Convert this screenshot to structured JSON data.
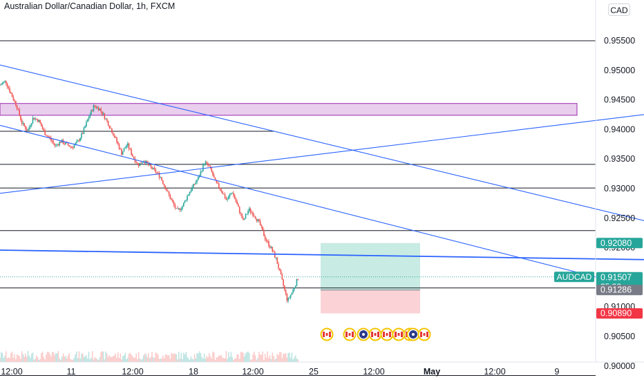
{
  "header": {
    "title": "Australian Dollar/Canadian Dollar, 1h, FXCM",
    "currency_button": "CAD"
  },
  "colors": {
    "up": "#26a69a",
    "down": "#ef5350",
    "trendline": "#2962ff",
    "zone_border": "#9c27b0",
    "zone_fill": "#e1bee7",
    "profit_zone": "#c8ebe3",
    "stop_zone": "#fbd3d6",
    "horizontal_line": "#131722",
    "target_tag": "#26a69a",
    "stop_tag": "#f23645",
    "entry_tag": "#787b86"
  },
  "chart_data": {
    "type": "line",
    "symbol": "AUDCAD",
    "timeframe": "1h",
    "y_ticks": [
      "0.95500",
      "0.95000",
      "0.94500",
      "0.94000",
      "0.93500",
      "0.93000",
      "0.92500",
      "0.92000",
      "0.91500",
      "0.91000",
      "0.90500",
      "0.90000"
    ],
    "y_tick_values": [
      0.955,
      0.95,
      0.945,
      0.94,
      0.935,
      0.93,
      0.925,
      0.92,
      0.915,
      0.91,
      0.905,
      0.9
    ],
    "x_ticks": [
      "12:00",
      "11",
      "12:00",
      "18",
      "12:00",
      "25",
      "12:00",
      "May",
      "12:00",
      "9"
    ],
    "x_tick_bold": [
      false,
      false,
      false,
      false,
      false,
      false,
      false,
      true,
      false,
      false
    ],
    "price_path": [
      {
        "t": 0,
        "p": 0.9475
      },
      {
        "t": 1,
        "p": 0.9482
      },
      {
        "t": 2,
        "p": 0.946
      },
      {
        "t": 3,
        "p": 0.944
      },
      {
        "t": 4,
        "p": 0.941
      },
      {
        "t": 5,
        "p": 0.9398
      },
      {
        "t": 6,
        "p": 0.942
      },
      {
        "t": 7,
        "p": 0.9415
      },
      {
        "t": 8,
        "p": 0.9395
      },
      {
        "t": 9,
        "p": 0.9385
      },
      {
        "t": 10,
        "p": 0.9372
      },
      {
        "t": 11,
        "p": 0.938
      },
      {
        "t": 12,
        "p": 0.9375
      },
      {
        "t": 13,
        "p": 0.937
      },
      {
        "t": 14,
        "p": 0.9378
      },
      {
        "t": 15,
        "p": 0.9395
      },
      {
        "t": 16,
        "p": 0.942
      },
      {
        "t": 17,
        "p": 0.944
      },
      {
        "t": 18,
        "p": 0.9435
      },
      {
        "t": 19,
        "p": 0.942
      },
      {
        "t": 20,
        "p": 0.9402
      },
      {
        "t": 21,
        "p": 0.9382
      },
      {
        "t": 22,
        "p": 0.936
      },
      {
        "t": 23,
        "p": 0.9375
      },
      {
        "t": 24,
        "p": 0.9355
      },
      {
        "t": 25,
        "p": 0.934
      },
      {
        "t": 26,
        "p": 0.9348
      },
      {
        "t": 27,
        "p": 0.9338
      },
      {
        "t": 28,
        "p": 0.933
      },
      {
        "t": 29,
        "p": 0.932
      },
      {
        "t": 30,
        "p": 0.93
      },
      {
        "t": 31,
        "p": 0.928
      },
      {
        "t": 32,
        "p": 0.9262
      },
      {
        "t": 33,
        "p": 0.927
      },
      {
        "t": 34,
        "p": 0.929
      },
      {
        "t": 35,
        "p": 0.9305
      },
      {
        "t": 36,
        "p": 0.932
      },
      {
        "t": 37,
        "p": 0.9345
      },
      {
        "t": 38,
        "p": 0.9335
      },
      {
        "t": 39,
        "p": 0.931
      },
      {
        "t": 40,
        "p": 0.9298
      },
      {
        "t": 41,
        "p": 0.928
      },
      {
        "t": 42,
        "p": 0.9295
      },
      {
        "t": 43,
        "p": 0.927
      },
      {
        "t": 44,
        "p": 0.9245
      },
      {
        "t": 45,
        "p": 0.9265
      },
      {
        "t": 46,
        "p": 0.9255
      },
      {
        "t": 47,
        "p": 0.924
      },
      {
        "t": 48,
        "p": 0.9215
      },
      {
        "t": 49,
        "p": 0.92
      },
      {
        "t": 50,
        "p": 0.918
      },
      {
        "t": 51,
        "p": 0.9145
      },
      {
        "t": 52,
        "p": 0.911
      },
      {
        "t": 53,
        "p": 0.9128
      },
      {
        "t": 54,
        "p": 0.91507
      }
    ],
    "horizontal_levels": [
      0.955,
      0.9397,
      0.9341,
      0.9301,
      0.9229,
      0.9132,
      0.8984
    ],
    "supply_zone": {
      "top": 0.9444,
      "bottom": 0.9424,
      "label": ""
    },
    "trendlines": [
      {
        "name": "channel-upper",
        "from": {
          "t": 0,
          "p": 0.9509
        },
        "to": {
          "t": 120,
          "p": 0.9238
        }
      },
      {
        "name": "channel-lower",
        "from": {
          "t": 0,
          "p": 0.9407
        },
        "to": {
          "t": 108,
          "p": 0.915
        }
      },
      {
        "name": "rising-line",
        "from": {
          "t": 0,
          "p": 0.9292
        },
        "to": {
          "t": 125,
          "p": 0.9435
        }
      },
      {
        "name": "falling-line",
        "from": {
          "t": 0,
          "p": 0.9196
        },
        "to": {
          "t": 174,
          "p": 0.9172
        }
      }
    ],
    "position": {
      "entry": 0.91286,
      "target": 0.9208,
      "stop": 0.9089
    },
    "price_tags": [
      {
        "name": "target-price-tag",
        "symbol": "",
        "value": "0.92080",
        "extra": "",
        "price": 0.9208,
        "color": "#26a69a"
      },
      {
        "name": "current-price-tag",
        "symbol": "AUDCAD",
        "value": "0.91507",
        "extra": "35:32",
        "price": 0.91507,
        "color": "#26a69a"
      },
      {
        "name": "entry-price-tag",
        "symbol": "",
        "value": "0.91286",
        "extra": "",
        "price": 0.91286,
        "color": "#787b86"
      },
      {
        "name": "stop-price-tag",
        "symbol": "",
        "value": "0.90890",
        "extra": "",
        "price": 0.9089,
        "color": "#f23645"
      }
    ],
    "events": [
      "canada-flag",
      "canada-flag",
      "australia-flag",
      "canada-flag",
      "canada-flag",
      "canada-flag",
      "canada-flag",
      "australia-flag",
      "canada-flag"
    ]
  }
}
